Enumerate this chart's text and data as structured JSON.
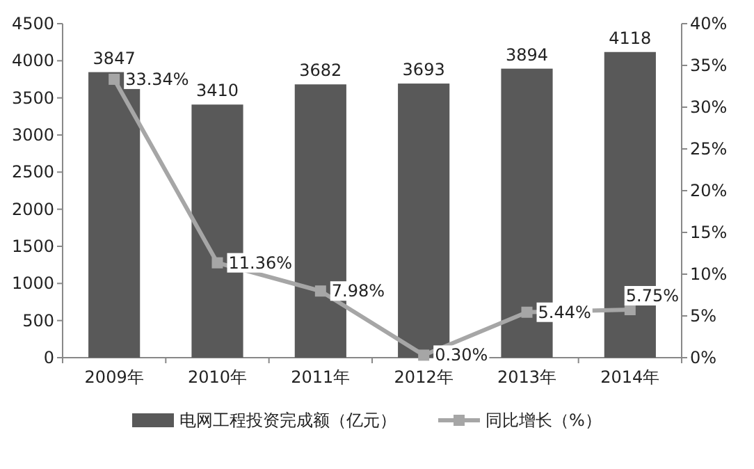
{
  "chart_data": {
    "type": "bar",
    "categories": [
      "2009年",
      "2010年",
      "2011年",
      "2012年",
      "2013年",
      "2014年"
    ],
    "series": [
      {
        "name": "电网工程投资完成额（亿元）",
        "color": "#595959",
        "values": [
          3847,
          3410,
          3682,
          3693,
          3894,
          4118
        ],
        "value_labels": [
          "3847",
          "3410",
          "3682",
          "3693",
          "3894",
          "4118"
        ]
      },
      {
        "name": "同比增长（%）",
        "type": "line",
        "axis": "y2",
        "color": "#a6a6a6",
        "marker": "square",
        "values": [
          33.34,
          11.36,
          7.98,
          0.3,
          5.44,
          5.75
        ],
        "value_labels": [
          "33.34%",
          "11.36%",
          "7.98%",
          "0.30%",
          "5.44%",
          "5.75%"
        ]
      }
    ],
    "ylim": [
      0,
      4500
    ],
    "yticks": [
      0,
      500,
      1000,
      1500,
      2000,
      2500,
      3000,
      3500,
      4000,
      4500
    ],
    "y2lim": [
      0,
      40
    ],
    "y2ticks": [
      {
        "value": 0,
        "label": "0%"
      },
      {
        "value": 5,
        "label": "5%"
      },
      {
        "value": 10,
        "label": "10%"
      },
      {
        "value": 15,
        "label": "15%"
      },
      {
        "value": 20,
        "label": "20%"
      },
      {
        "value": 25,
        "label": "25%"
      },
      {
        "value": 30,
        "label": "30%"
      },
      {
        "value": 35,
        "label": "35%"
      },
      {
        "value": 40,
        "label": "40%"
      }
    ],
    "grid": false,
    "legend": "bottom"
  }
}
